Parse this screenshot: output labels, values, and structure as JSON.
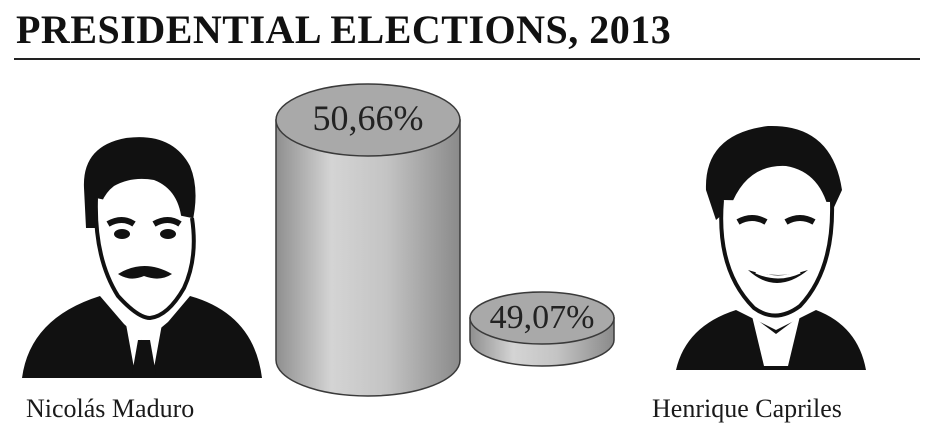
{
  "title": "PRESIDENTIAL ELECTIONS, 2013",
  "chart_data": {
    "type": "bar",
    "title": "PRESIDENTIAL ELECTIONS, 2013",
    "categories": [
      "Nicolás Maduro",
      "Henrique Capriles"
    ],
    "values": [
      50.66,
      49.07
    ],
    "value_labels": [
      "50,66%",
      "49,07%"
    ],
    "unit": "%",
    "colors": {
      "cylinder": "#bdbdbd",
      "cylinder_top": "#a9a9a9",
      "outline": "#3a3a3a"
    }
  },
  "candidates": [
    {
      "name": "Nicolás Maduro",
      "photo_icon": "portrait-icon"
    },
    {
      "name": "Henrique Capriles",
      "photo_icon": "portrait-icon"
    }
  ]
}
